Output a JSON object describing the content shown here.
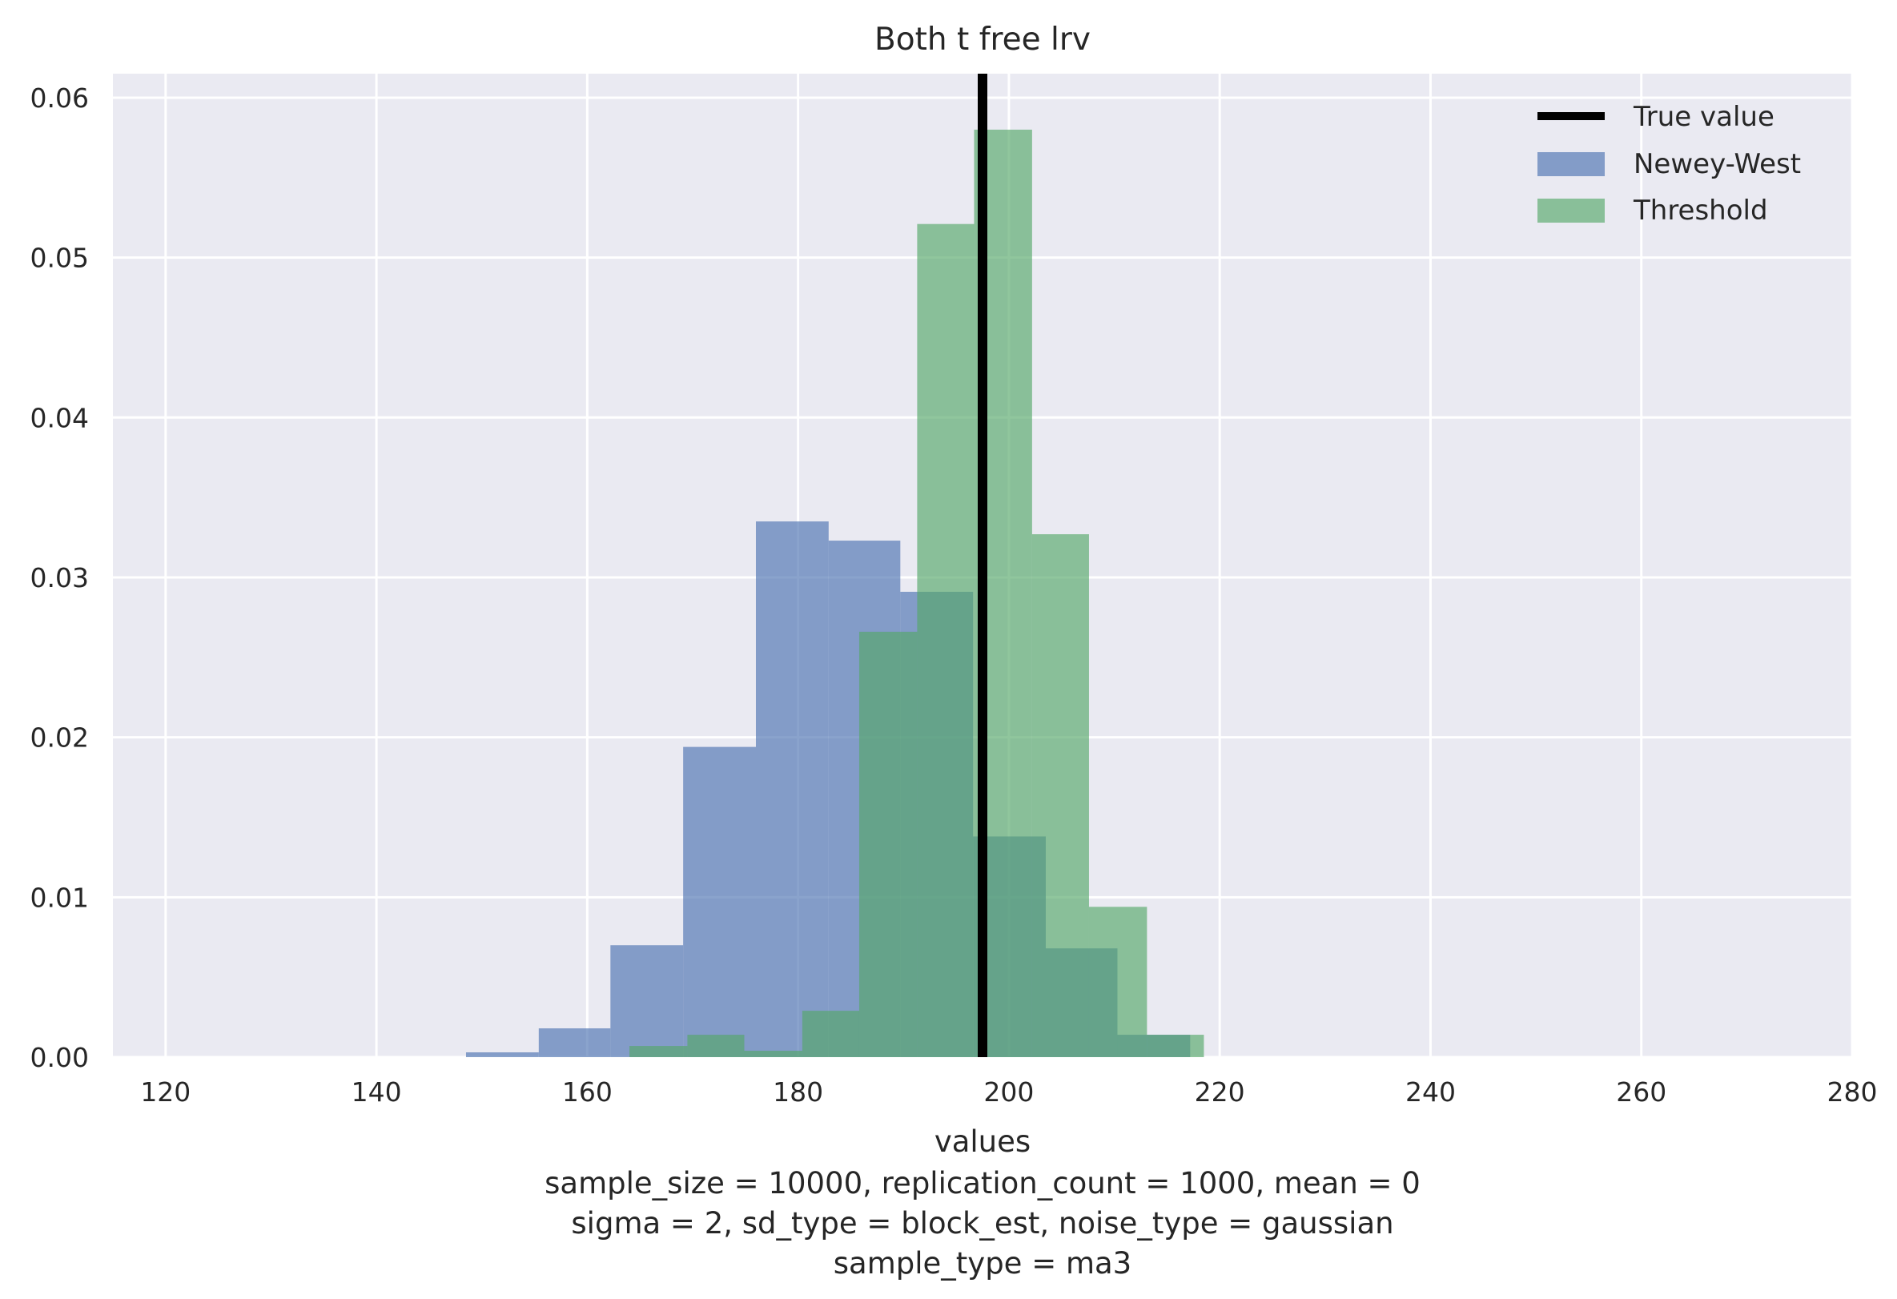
{
  "chart_data": {
    "type": "histogram",
    "title": "Both t free lrv",
    "xlabel": "values",
    "caption_lines": [
      "sample_size = 10000, replication_count = 1000, mean = 0",
      "sigma = 2, sd_type = block_est, noise_type = gaussian",
      "sample_type = ma3"
    ],
    "xlim": [
      115,
      280
    ],
    "ylim": [
      0,
      0.0615
    ],
    "xticks": [
      120,
      140,
      160,
      180,
      200,
      220,
      240,
      260,
      280
    ],
    "yticks": [
      0.0,
      0.01,
      0.02,
      0.03,
      0.04,
      0.05,
      0.06
    ],
    "ytick_labels": [
      "0.00",
      "0.01",
      "0.02",
      "0.03",
      "0.04",
      "0.05",
      "0.06"
    ],
    "grid": true,
    "legend_position": "upper right",
    "true_value": {
      "name": "True value",
      "x": 197.5,
      "color": "#000000"
    },
    "series": [
      {
        "name": "Newey-West",
        "color": "#4c72b0",
        "opacity": 0.65,
        "bins": [
          {
            "x0": 148.5,
            "x1": 155.4,
            "y": 0.0003
          },
          {
            "x0": 155.4,
            "x1": 162.2,
            "y": 0.0018
          },
          {
            "x0": 162.2,
            "x1": 169.1,
            "y": 0.007
          },
          {
            "x0": 169.1,
            "x1": 176.0,
            "y": 0.0194
          },
          {
            "x0": 176.0,
            "x1": 182.9,
            "y": 0.0335
          },
          {
            "x0": 182.9,
            "x1": 189.7,
            "y": 0.0323
          },
          {
            "x0": 189.7,
            "x1": 196.6,
            "y": 0.0291
          },
          {
            "x0": 196.6,
            "x1": 203.5,
            "y": 0.0138
          },
          {
            "x0": 203.5,
            "x1": 210.3,
            "y": 0.0068
          },
          {
            "x0": 210.3,
            "x1": 217.2,
            "y": 0.0014
          }
        ]
      },
      {
        "name": "Threshold",
        "color": "#55a868",
        "opacity": 0.65,
        "bins": [
          {
            "x0": 164.0,
            "x1": 169.5,
            "y": 0.0007
          },
          {
            "x0": 169.5,
            "x1": 174.9,
            "y": 0.0014
          },
          {
            "x0": 174.9,
            "x1": 180.4,
            "y": 0.0004
          },
          {
            "x0": 180.4,
            "x1": 185.8,
            "y": 0.0029
          },
          {
            "x0": 185.8,
            "x1": 191.3,
            "y": 0.0266
          },
          {
            "x0": 191.3,
            "x1": 196.7,
            "y": 0.0521
          },
          {
            "x0": 196.7,
            "x1": 202.2,
            "y": 0.058
          },
          {
            "x0": 202.2,
            "x1": 207.6,
            "y": 0.0327
          },
          {
            "x0": 207.6,
            "x1": 213.1,
            "y": 0.0094
          },
          {
            "x0": 213.1,
            "x1": 218.5,
            "y": 0.0014
          }
        ]
      }
    ]
  }
}
